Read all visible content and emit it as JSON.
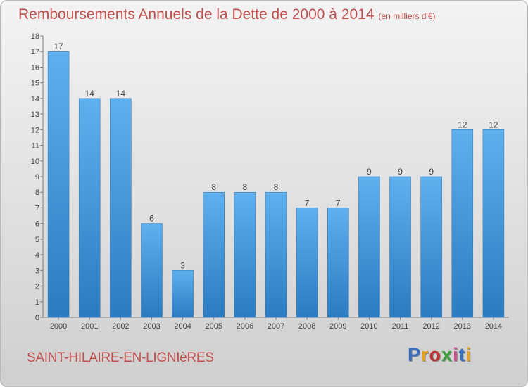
{
  "title": {
    "main": "Remboursements Annuels de la Dette de 2000 à 2014",
    "unit": "(en milliers d'€)"
  },
  "commune": "SAINT-HILAIRE-EN-LIGNIèRES",
  "logo": {
    "text": "Proxiti",
    "colors": [
      "#3a6fc1",
      "#e8a020",
      "#c03030",
      "#3aa03a",
      "#d05090",
      "#3a6fc1",
      "#e8a020"
    ]
  },
  "chart_data": {
    "type": "bar",
    "categories": [
      "2000",
      "2001",
      "2002",
      "2003",
      "2004",
      "2005",
      "2006",
      "2007",
      "2008",
      "2009",
      "2010",
      "2011",
      "2012",
      "2013",
      "2014"
    ],
    "values": [
      17,
      14,
      14,
      6,
      3,
      8,
      8,
      8,
      7,
      7,
      9,
      9,
      9,
      12,
      12
    ],
    "data_labels": [
      "17",
      "14",
      "14",
      "6",
      "3",
      "8",
      "8",
      "8",
      "7",
      "7",
      "9",
      "9",
      "9",
      "12",
      "12"
    ],
    "y_ticks": [
      "0",
      "1",
      "2",
      "3",
      "4",
      "5",
      "6",
      "7",
      "8",
      "9",
      "10",
      "11",
      "12",
      "13",
      "14",
      "15",
      "16",
      "17",
      "18"
    ],
    "ylim": [
      0,
      18
    ],
    "grid": false,
    "bar_color": "#3b8fd4"
  }
}
